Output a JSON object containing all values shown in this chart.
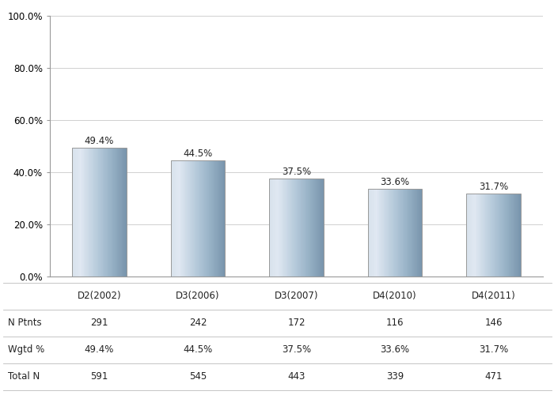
{
  "categories": [
    "D2(2002)",
    "D3(2006)",
    "D3(2007)",
    "D4(2010)",
    "D4(2011)"
  ],
  "values": [
    49.4,
    44.5,
    37.5,
    33.6,
    31.7
  ],
  "labels": [
    "49.4%",
    "44.5%",
    "37.5%",
    "33.6%",
    "31.7%"
  ],
  "n_ptnts": [
    "291",
    "242",
    "172",
    "116",
    "146"
  ],
  "wgtd_pct": [
    "49.4%",
    "44.5%",
    "37.5%",
    "33.6%",
    "31.7%"
  ],
  "total_n": [
    "591",
    "545",
    "443",
    "339",
    "471"
  ],
  "row_labels": [
    "N Ptnts",
    "Wgtd %",
    "Total N"
  ],
  "ylim": [
    0,
    100
  ],
  "yticks": [
    0,
    20,
    40,
    60,
    80,
    100
  ],
  "ytick_labels": [
    "0.0%",
    "20.0%",
    "40.0%",
    "60.0%",
    "80.0%",
    "100.0%"
  ],
  "background_color": "#ffffff",
  "grid_color": "#d0d0d0",
  "label_fontsize": 8.5,
  "tick_fontsize": 8.5,
  "table_fontsize": 8.5,
  "bar_width": 0.55
}
